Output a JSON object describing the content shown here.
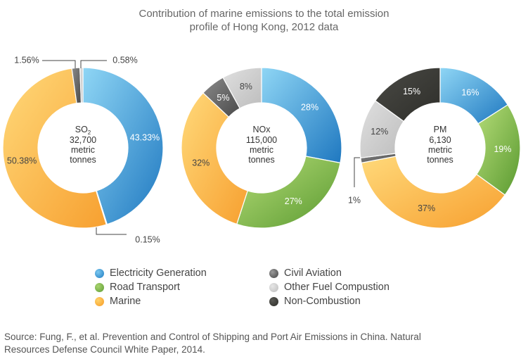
{
  "title_line1": "Contribution of marine emissions to the total emission",
  "title_line2": "profile of Hong Kong, 2012 data",
  "colors": {
    "electricity": "#2f8fd1",
    "road": "#7ab648",
    "marine": "#fbad3a",
    "aviation": "#555555",
    "other": "#c9c9c9",
    "noncombustion": "#3a3a36"
  },
  "legend": [
    {
      "label": "Electricity Generation",
      "key": "electricity"
    },
    {
      "label": "Road Transport",
      "key": "road"
    },
    {
      "label": "Marine",
      "key": "marine"
    },
    {
      "label": "Civil Aviation",
      "key": "aviation"
    },
    {
      "label": "Other Fuel Compustion",
      "key": "other"
    },
    {
      "label": "Non-Combustion",
      "key": "noncombustion"
    }
  ],
  "source_line1": "Source: Fung, F., et al. Prevention and Control of Shipping and Port Air Emissions in China. Natural",
  "source_line2": "Resources Defense Council White Paper, 2014.",
  "chart_data": [
    {
      "type": "pie",
      "center_label": [
        "SO",
        "2",
        "32,700",
        "metric",
        "tonnes"
      ],
      "series": [
        {
          "name": "Electricity Generation",
          "key": "electricity",
          "value": 43.33,
          "label": "43.33%"
        },
        {
          "name": "Road Transport",
          "key": "road",
          "value": 0.15,
          "label": "0.15%"
        },
        {
          "name": "Marine",
          "key": "marine",
          "value": 50.38,
          "label": "50.38%"
        },
        {
          "name": "Civil Aviation",
          "key": "aviation",
          "value": 1.56,
          "label": "1.56%"
        },
        {
          "name": "Other Fuel Compustion",
          "key": "other",
          "value": 0.58,
          "label": "0.58%"
        }
      ]
    },
    {
      "type": "pie",
      "center_label": [
        "NOx",
        "",
        "115,000",
        "metric",
        "tonnes"
      ],
      "series": [
        {
          "name": "Electricity Generation",
          "key": "electricity",
          "value": 28,
          "label": "28%"
        },
        {
          "name": "Road Transport",
          "key": "road",
          "value": 27,
          "label": "27%"
        },
        {
          "name": "Marine",
          "key": "marine",
          "value": 32,
          "label": "32%"
        },
        {
          "name": "Civil Aviation",
          "key": "aviation",
          "value": 5,
          "label": "5%"
        },
        {
          "name": "Other Fuel Compustion",
          "key": "other",
          "value": 8,
          "label": "8%"
        }
      ]
    },
    {
      "type": "pie",
      "center_label": [
        "PM",
        "",
        "6,130",
        "metric",
        "tonnes"
      ],
      "series": [
        {
          "name": "Electricity Generation",
          "key": "electricity",
          "value": 16,
          "label": "16%"
        },
        {
          "name": "Road Transport",
          "key": "road",
          "value": 19,
          "label": "19%"
        },
        {
          "name": "Marine",
          "key": "marine",
          "value": 37,
          "label": "37%"
        },
        {
          "name": "Civil Aviation",
          "key": "aviation",
          "value": 1,
          "label": "1%"
        },
        {
          "name": "Other Fuel Compustion",
          "key": "other",
          "value": 12,
          "label": "12%"
        },
        {
          "name": "Non-Combustion",
          "key": "noncombustion",
          "value": 15,
          "label": "15%"
        }
      ]
    }
  ]
}
